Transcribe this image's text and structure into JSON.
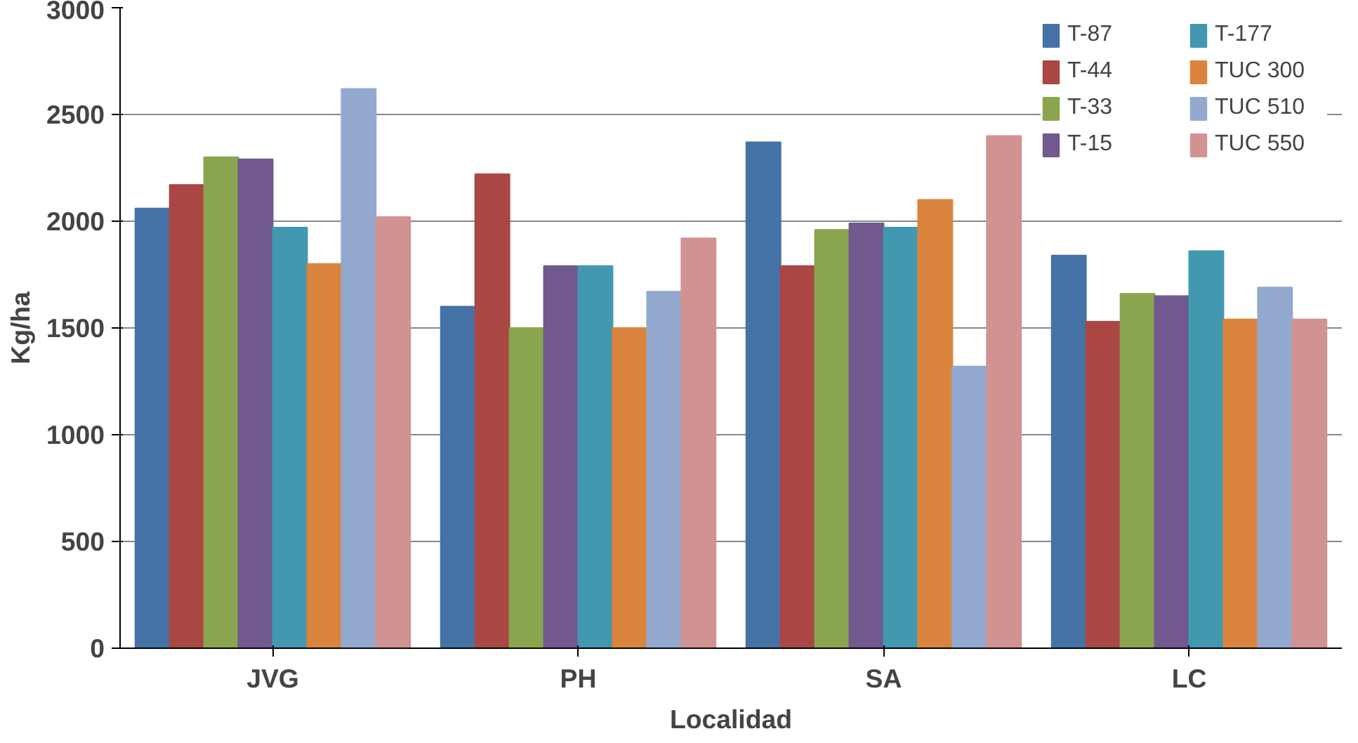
{
  "chart_data": {
    "type": "bar",
    "xlabel": "Localidad",
    "ylabel": "Kg/ha",
    "categories": [
      "JVG",
      "PH",
      "SA",
      "LC"
    ],
    "series": [
      {
        "name": "T-87",
        "color": "#4572a7",
        "values": [
          2060,
          1600,
          2370,
          1840
        ]
      },
      {
        "name": "T-44",
        "color": "#aa4643",
        "values": [
          2170,
          2220,
          1790,
          1530
        ]
      },
      {
        "name": "T-33",
        "color": "#89a54e",
        "values": [
          2300,
          1500,
          1960,
          1660
        ]
      },
      {
        "name": "T-15",
        "color": "#71588f",
        "values": [
          2290,
          1790,
          1990,
          1650
        ]
      },
      {
        "name": "T-177",
        "color": "#4198af",
        "values": [
          1970,
          1790,
          1970,
          1860
        ]
      },
      {
        "name": "TUC 300",
        "color": "#db843d",
        "values": [
          1800,
          1500,
          2100,
          1540
        ]
      },
      {
        "name": "TUC 510",
        "color": "#93a9cf",
        "values": [
          2620,
          1670,
          1320,
          1690
        ]
      },
      {
        "name": "TUC 550",
        "color": "#d19392",
        "values": [
          2020,
          1920,
          2400,
          1540
        ]
      }
    ],
    "ylim": [
      0,
      3000
    ],
    "yticks": [
      0,
      500,
      1000,
      1500,
      2000,
      2500,
      3000
    ],
    "grid": "y",
    "legend": "top right"
  }
}
